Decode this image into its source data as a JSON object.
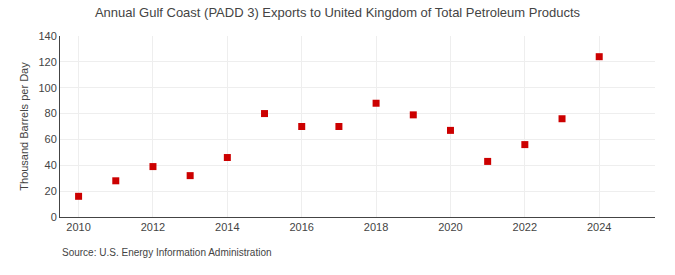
{
  "chart_data": {
    "type": "scatter",
    "title": "Annual Gulf Coast (PADD 3) Exports to United Kingdom of Total Petroleum Products",
    "ylabel": "Thousand Barrels per Day",
    "annotations": [
      "Source: U.S. Energy Information Administration"
    ],
    "x": [
      2010,
      2011,
      2012,
      2013,
      2014,
      2015,
      2016,
      2017,
      2018,
      2019,
      2020,
      2021,
      2022,
      2023,
      2024
    ],
    "values": [
      16,
      28,
      39,
      32,
      46,
      80,
      70,
      70,
      88,
      79,
      67,
      43,
      56,
      76,
      124
    ],
    "color": "#cc0000",
    "marker": "square",
    "xlim": [
      2009.5,
      2025.5
    ],
    "ylim": [
      0,
      140
    ],
    "xticks": [
      2010,
      2012,
      2014,
      2016,
      2018,
      2020,
      2022,
      2024
    ],
    "yticks": [
      0,
      20,
      40,
      60,
      80,
      100,
      120,
      140
    ],
    "grid": true
  }
}
